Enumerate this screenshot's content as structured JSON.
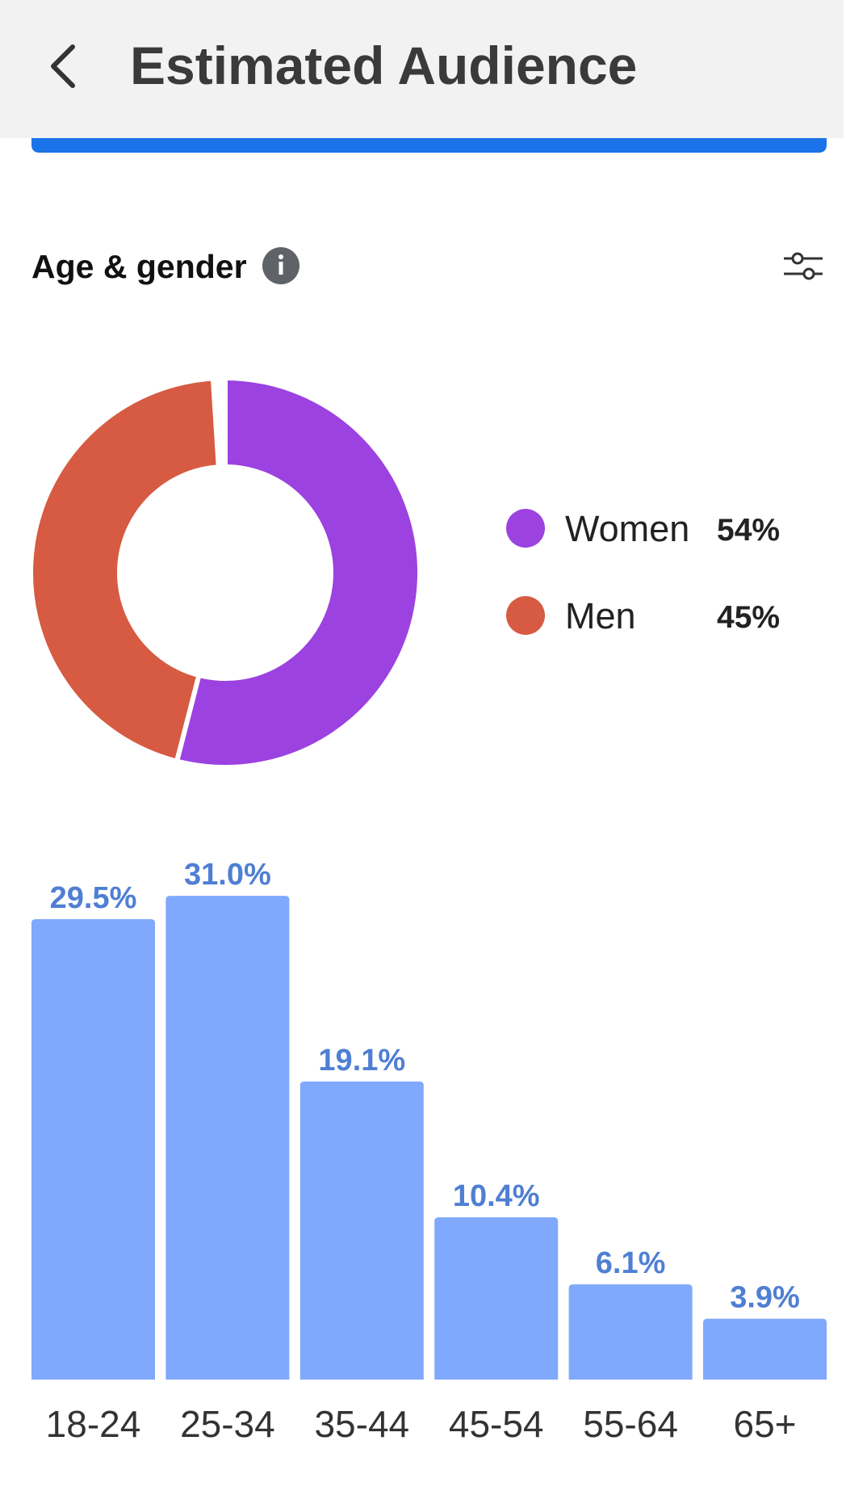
{
  "header": {
    "title": "Estimated Audience"
  },
  "section": {
    "title": "Age & gender"
  },
  "chart_data": [
    {
      "type": "pie",
      "categories": [
        "Women",
        "Men"
      ],
      "values": [
        54,
        45
      ],
      "value_labels": [
        "54%",
        "45%"
      ],
      "colors": [
        "#9b42e0",
        "#d65b42"
      ],
      "donut": true
    },
    {
      "type": "bar",
      "categories": [
        "18-24",
        "25-34",
        "35-44",
        "45-54",
        "55-64",
        "65+"
      ],
      "values": [
        29.5,
        31.0,
        19.1,
        10.4,
        6.1,
        3.9
      ],
      "value_labels": [
        "29.5%",
        "31.0%",
        "19.1%",
        "10.4%",
        "6.1%",
        "3.9%"
      ],
      "color": "#80a8fc",
      "label_color": "#4f7fd3"
    }
  ]
}
